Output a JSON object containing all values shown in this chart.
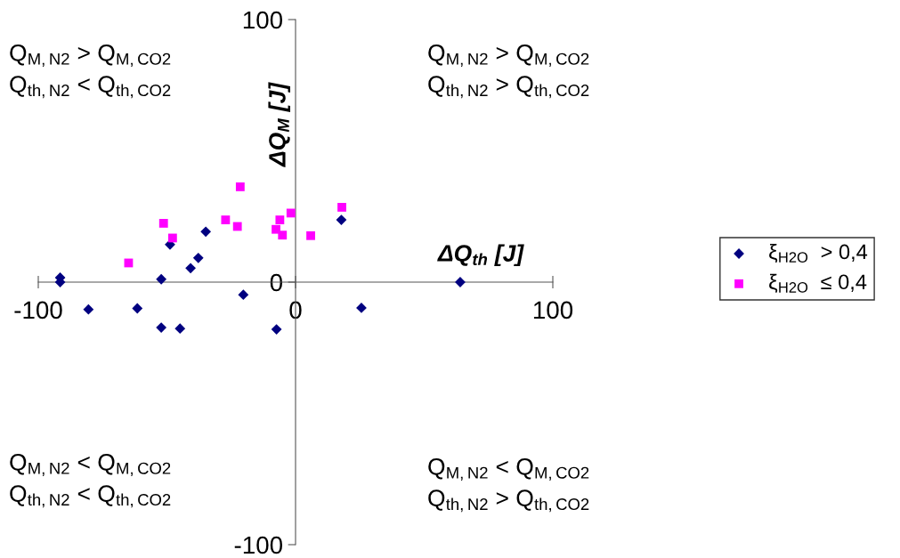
{
  "chart_data": {
    "type": "scatter",
    "xlabel": "ΔQ$_{th}$ [J]",
    "ylabel": "ΔQ$_{M}$ [J]",
    "xlim": [
      -100,
      100
    ],
    "ylim": [
      -100,
      100
    ],
    "xticks": [
      -100,
      0,
      100
    ],
    "yticks": [
      -100,
      0,
      100
    ],
    "grid": false,
    "legend": "right",
    "series": [
      {
        "name": "ξ$_{H2O}$  > 0,4",
        "color": "#000080",
        "marker": "diamond",
        "x": [
          -91.5,
          -91.5,
          -80.5,
          -61.5,
          -52.2,
          -52.2,
          -44.9,
          -48.8,
          -40.8,
          -37.8,
          -34.9,
          -20.3,
          -7.4,
          17.8,
          25.6,
          64
        ],
        "values": [
          1.7,
          0,
          -10.4,
          -10,
          1.1,
          -17.3,
          -17.7,
          14.3,
          5.3,
          9.2,
          19.2,
          -4.8,
          -18,
          23.7,
          -9.8,
          0
        ]
      },
      {
        "name": "ξ$_{H2O}$  ≤ 0,4",
        "color": "#ff00ff",
        "marker": "square",
        "x": [
          -64.9,
          -51.3,
          -47.8,
          -27.2,
          -22.6,
          -21.5,
          -7.6,
          -6.1,
          -5.1,
          -1.8,
          5.9,
          18
        ],
        "values": [
          7.3,
          22.4,
          16.8,
          23.7,
          21.2,
          36.3,
          20.1,
          23.7,
          17.9,
          26.3,
          17.7,
          28.5
        ]
      }
    ],
    "annotations": [
      "Q$_{M,N2}$ > Q$_{M,CO2}$\nQ$_{th,N2}$ < Q$_{th,CO2}$",
      "Q$_{M,N2}$ > Q$_{M,CO2}$\nQ$_{th,N2}$ > Q$_{th,CO2}$",
      "Q$_{M,N2}$ < Q$_{M,CO2}$\nQ$_{th,N2}$ < Q$_{th,CO2}$",
      "Q$_{M,N2}$ < Q$_{M,CO2}$\nQ$_{th,N2}$ > Q$_{th,CO2}$"
    ]
  }
}
